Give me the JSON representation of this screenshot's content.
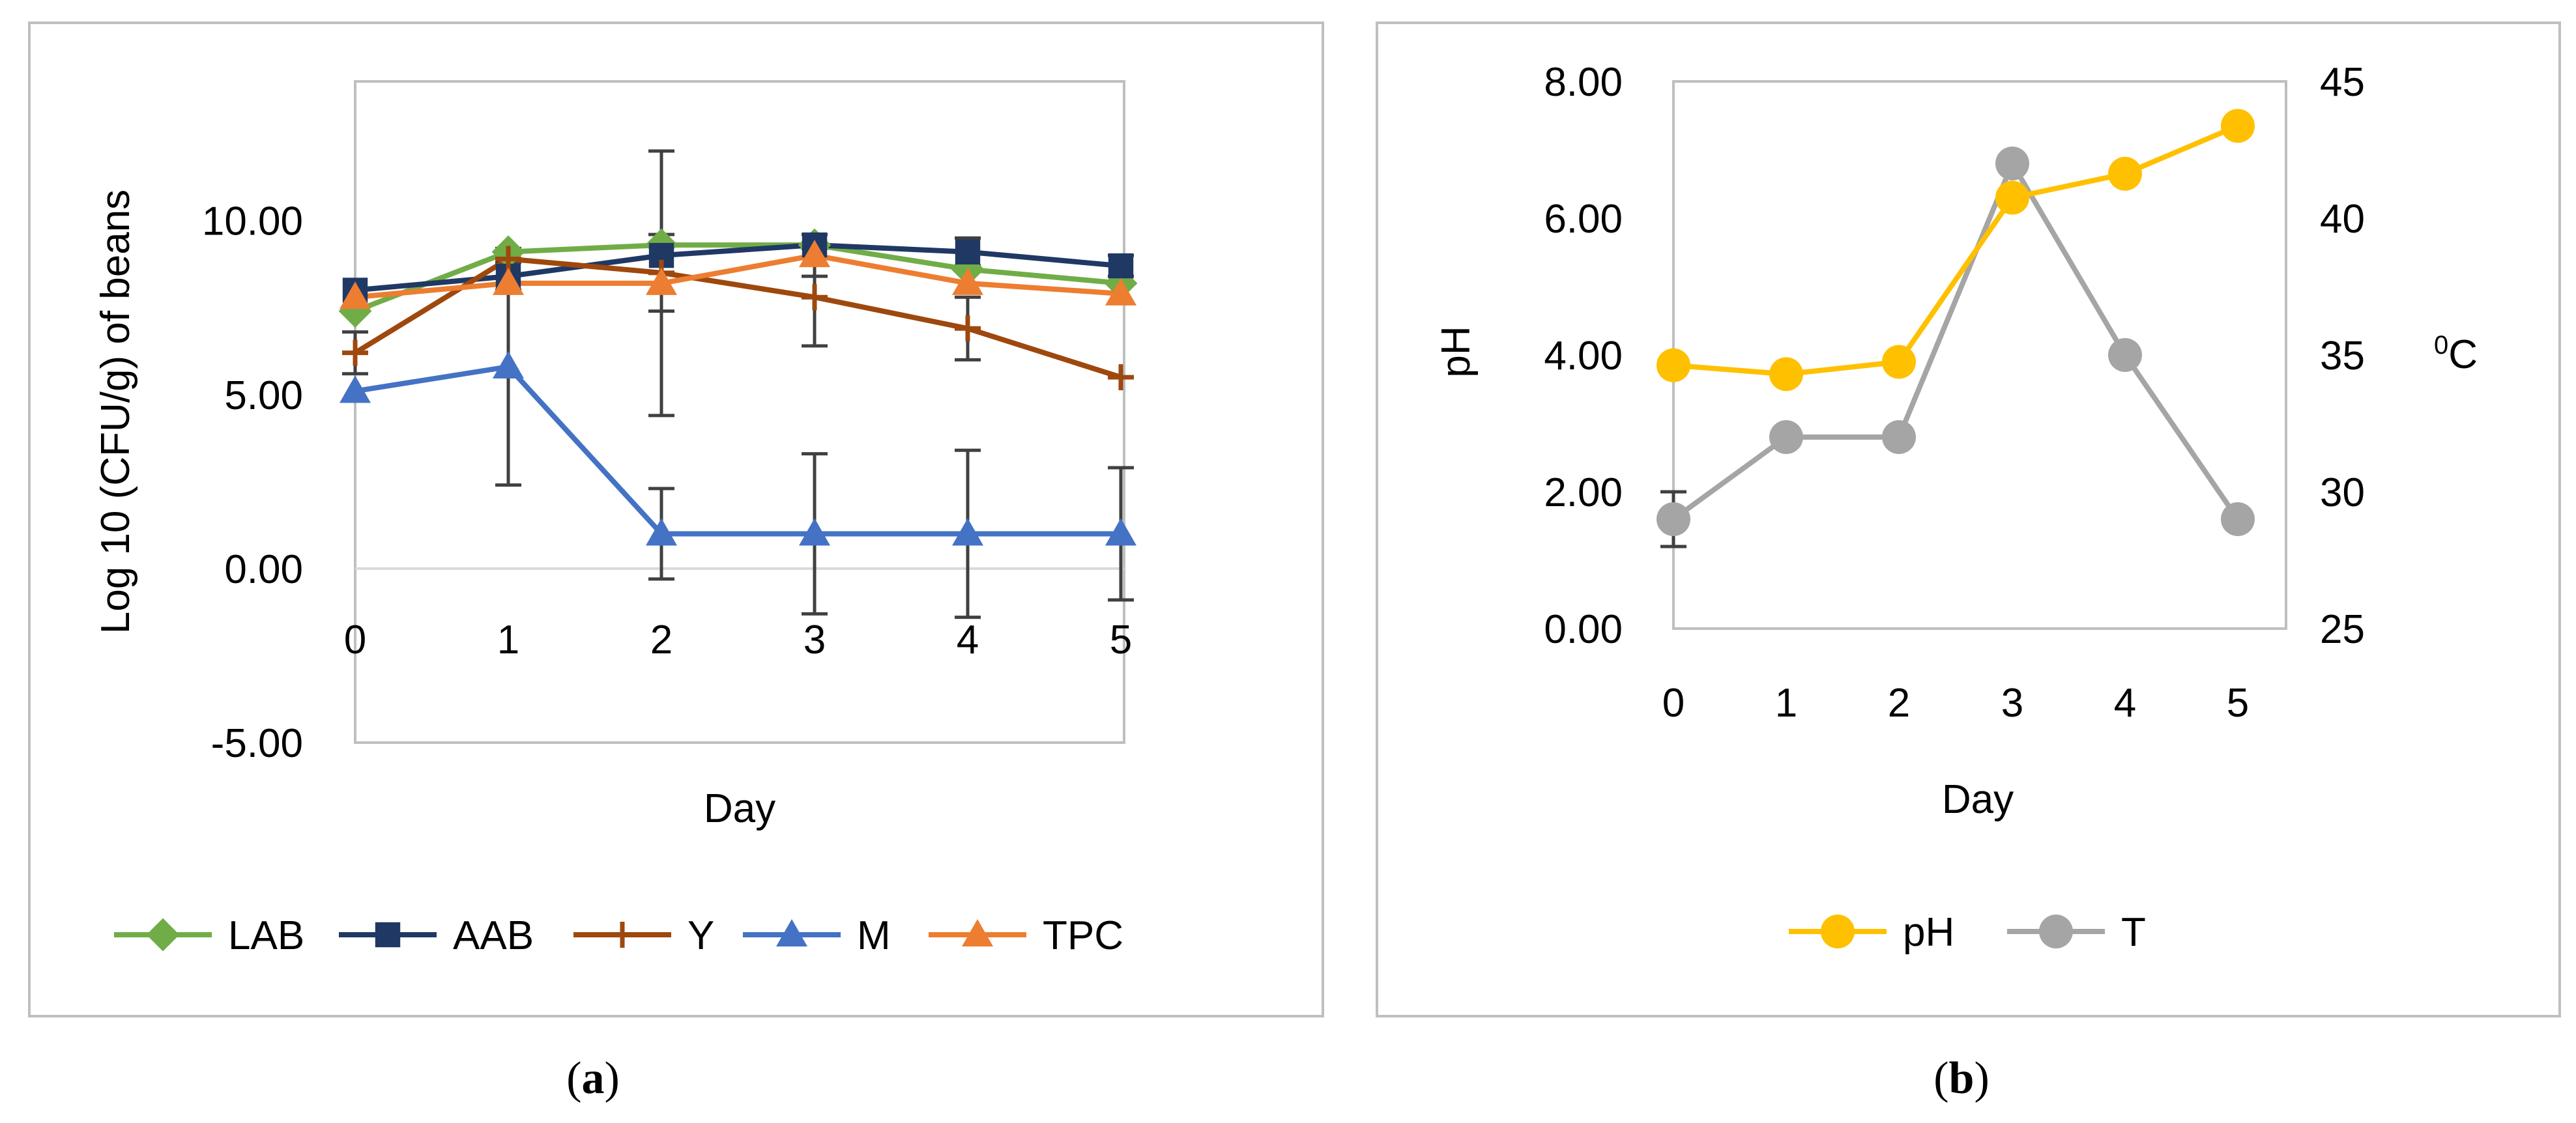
{
  "chart_data": [
    {
      "id": "a",
      "type": "line",
      "caption": "(a)",
      "caption_letter": "a",
      "xlabel": "Day",
      "ylabel": "Log 10 (CFU/g) of beans",
      "categories": [
        "0",
        "1",
        "2",
        "3",
        "4",
        "5"
      ],
      "ylim": [
        -5,
        14
      ],
      "yticks": [
        -5,
        0,
        5,
        10
      ],
      "ytick_labels": [
        "-5.00",
        "0.00",
        "5.00",
        "10.00"
      ],
      "grid": false,
      "legend": "bottom",
      "series": [
        {
          "name": "LAB",
          "color": "#70AD47",
          "marker": "diamond",
          "values": [
            7.4,
            9.1,
            9.3,
            9.3,
            8.6,
            8.2
          ],
          "errors": [
            null,
            null,
            null,
            null,
            null,
            null
          ]
        },
        {
          "name": "AAB",
          "color": "#203864",
          "marker": "square",
          "values": [
            8.0,
            8.4,
            9.0,
            9.3,
            9.1,
            8.7
          ],
          "errors": [
            null,
            0.4,
            null,
            null,
            0.4,
            0.3
          ]
        },
        {
          "name": "Y",
          "color": "#9E480E",
          "marker": "plus",
          "values": [
            6.2,
            8.9,
            8.5,
            7.8,
            6.9,
            5.5
          ],
          "errors": [
            0.6,
            null,
            1.1,
            1.4,
            0.9,
            null
          ]
        },
        {
          "name": "M",
          "color": "#4472C4",
          "marker": "triangle",
          "values": [
            5.1,
            5.8,
            1.0,
            1.0,
            1.0,
            1.0
          ],
          "errors": [
            null,
            3.4,
            1.3,
            2.3,
            2.4,
            1.9
          ]
        },
        {
          "name": "TPC",
          "color": "#ED7D31",
          "marker": "triangle",
          "values": [
            7.8,
            8.2,
            8.2,
            9.0,
            8.2,
            7.9
          ],
          "errors": [
            null,
            null,
            3.8,
            0.6,
            null,
            null
          ]
        }
      ]
    },
    {
      "id": "b",
      "type": "line",
      "caption": "(b)",
      "caption_letter": "b",
      "xlabel": "Day",
      "ylabel": "pH",
      "y2label": "0C",
      "y2label_sup": "0",
      "y2label_main": "C",
      "categories": [
        "0",
        "1",
        "2",
        "3",
        "4",
        "5"
      ],
      "ylim": [
        0,
        8
      ],
      "yticks": [
        0,
        2,
        4,
        6,
        8
      ],
      "ytick_labels": [
        "0.00",
        "2.00",
        "4.00",
        "6.00",
        "8.00"
      ],
      "y2lim": [
        25,
        45
      ],
      "y2ticks": [
        25,
        30,
        35,
        40,
        45
      ],
      "y2tick_labels": [
        "25",
        "30",
        "35",
        "40",
        "45"
      ],
      "grid": false,
      "legend": "bottom",
      "series": [
        {
          "name": "pH",
          "axis": "left",
          "color": "#FFC000",
          "marker": "circle",
          "values": [
            3.85,
            3.72,
            3.9,
            6.3,
            6.65,
            7.35
          ]
        },
        {
          "name": "T",
          "axis": "right",
          "color": "#A5A5A5",
          "marker": "circle",
          "values": [
            29,
            32,
            32,
            42,
            35,
            29
          ],
          "errors": [
            1,
            null,
            null,
            null,
            null,
            null
          ]
        }
      ]
    }
  ]
}
